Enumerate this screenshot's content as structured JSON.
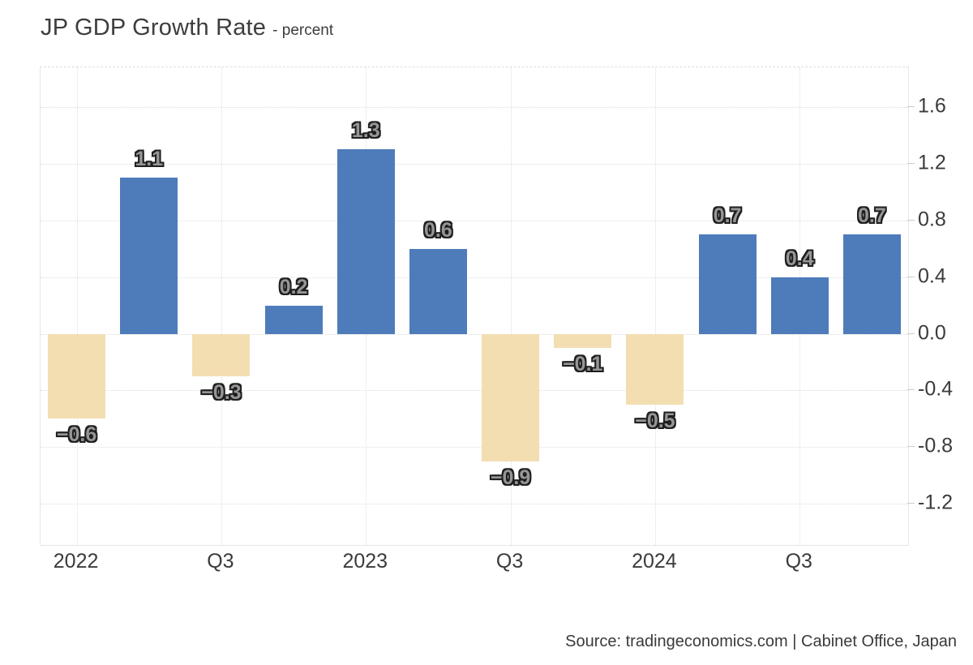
{
  "header": {
    "title": "JP GDP Growth Rate",
    "subtitle": "- percent"
  },
  "footer": {
    "source": "Source: tradingeconomics.com | Cabinet Office, Japan"
  },
  "chart_data": {
    "type": "bar",
    "title": "JP GDP Growth Rate",
    "ylabel": "percent",
    "values": [
      -0.6,
      1.1,
      -0.3,
      0.2,
      1.3,
      0.6,
      -0.9,
      -0.1,
      -0.5,
      0.7,
      0.4,
      0.7
    ],
    "x_tick_labels": [
      {
        "bar_index": 0,
        "label": "2022"
      },
      {
        "bar_index": 2,
        "label": "Q3"
      },
      {
        "bar_index": 4,
        "label": "2023"
      },
      {
        "bar_index": 6,
        "label": "Q3"
      },
      {
        "bar_index": 8,
        "label": "2024"
      },
      {
        "bar_index": 10,
        "label": "Q3"
      }
    ],
    "y_ticks": [
      1.6,
      1.2,
      0.8,
      0.4,
      0.0,
      -0.4,
      -0.8,
      -1.2
    ],
    "ylim": [
      -1.49,
      1.88
    ],
    "grid": "dotted",
    "legend": "none",
    "bar_width_ratio": 0.8,
    "colors": {
      "positive_bar": "#4e7cba",
      "negative_bar": "#f3deb2",
      "grid": "#dedede",
      "plot_border": "#e6e6e6",
      "axis_text": "#3b3b3b",
      "bar_label_fill": "#969696",
      "bar_label_stroke": "#1f1f1f",
      "title_text": "#3d3d3d",
      "source_text": "#3a3a3a"
    }
  }
}
